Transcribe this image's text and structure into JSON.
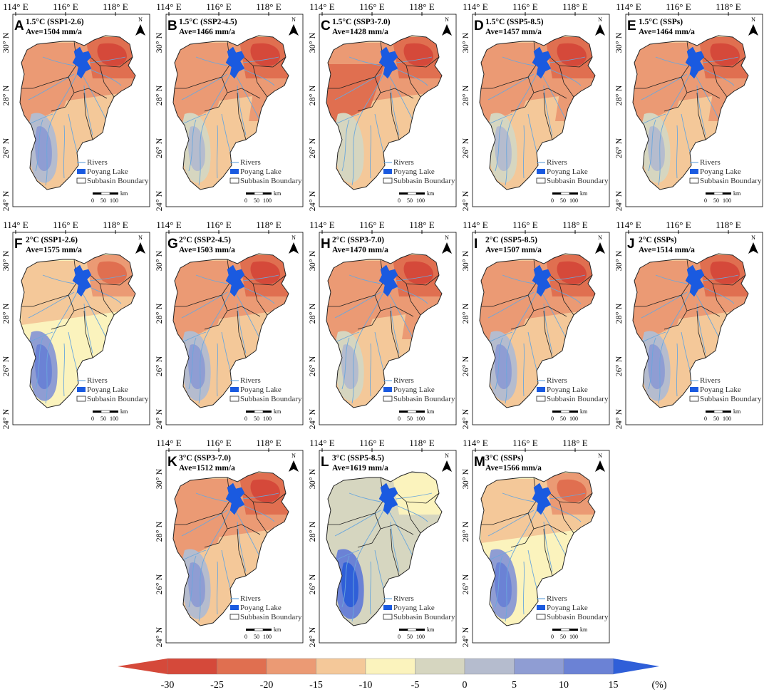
{
  "panels": [
    {
      "letter": "A",
      "title": "1.5°C (SSP1-2.6)",
      "ave": "Ave=1504 mm/a",
      "scheme": "mixed"
    },
    {
      "letter": "B",
      "title": "1.5°C (SSP2-4.5)",
      "ave": "Ave=1466 mm/a",
      "scheme": "drier"
    },
    {
      "letter": "C",
      "title": "1.5°C (SSP3-7.0)",
      "ave": "Ave=1428 mm/a",
      "scheme": "driest"
    },
    {
      "letter": "D",
      "title": "1.5°C (SSP5-8.5)",
      "ave": "Ave=1457 mm/a",
      "scheme": "drier"
    },
    {
      "letter": "E",
      "title": "1.5°C (SSPs)",
      "ave": "Ave=1464 mm/a",
      "scheme": "drier"
    },
    {
      "letter": "F",
      "title": "2°C (SSP1-2.6)",
      "ave": "Ave=1575 mm/a",
      "scheme": "wetter"
    },
    {
      "letter": "G",
      "title": "2°C (SSP2-4.5)",
      "ave": "Ave=1503 mm/a",
      "scheme": "mixed"
    },
    {
      "letter": "H",
      "title": "2°C (SSP3-7.0)",
      "ave": "Ave=1470 mm/a",
      "scheme": "drier"
    },
    {
      "letter": "I",
      "title": "2°C (SSP5-8.5)",
      "ave": "Ave=1507 mm/a",
      "scheme": "mixed"
    },
    {
      "letter": "J",
      "title": "2°C (SSPs)",
      "ave": "Ave=1514 mm/a",
      "scheme": "mixed"
    },
    {
      "letter": "K",
      "title": "3°C (SSP3-7.0)",
      "ave": "Ave=1512 mm/a",
      "scheme": "mixed"
    },
    {
      "letter": "L",
      "title": "3°C (SSP5-8.5)",
      "ave": "Ave=1619 mm/a",
      "scheme": "wettest"
    },
    {
      "letter": "M",
      "title": "3°C (SSPs)",
      "ave": "Ave=1566 mm/a",
      "scheme": "wetter"
    }
  ],
  "axes": {
    "lon_ticks": [
      "114° E",
      "116° E",
      "118° E"
    ],
    "lat_ticks": [
      "30° N",
      "28° N",
      "26° N",
      "24° N"
    ]
  },
  "map_legend": {
    "rivers": "Rivers",
    "lake": "Poyang Lake",
    "boundary": "Subbasin Boundary"
  },
  "scale_bar": {
    "unit": "km",
    "ticks": [
      "0",
      "50",
      "100"
    ]
  },
  "north_arrow": {
    "label": "N"
  },
  "colorbar": {
    "breaks": [
      "-30",
      "-25",
      "-20",
      "-15",
      "-10",
      "-5",
      "0",
      "5",
      "10",
      "15"
    ],
    "unit": "(%)",
    "colors": [
      "#d5493a",
      "#e06f50",
      "#eb9a74",
      "#f4c899",
      "#fbf3bd",
      "#d6d6c0",
      "#b5bcce",
      "#8f9dd3",
      "#6b82d5",
      "#2f5fd8"
    ]
  },
  "colors": {
    "lake": "#1a5ae0",
    "river": "#6ba7dc",
    "boundary": "#222222"
  }
}
